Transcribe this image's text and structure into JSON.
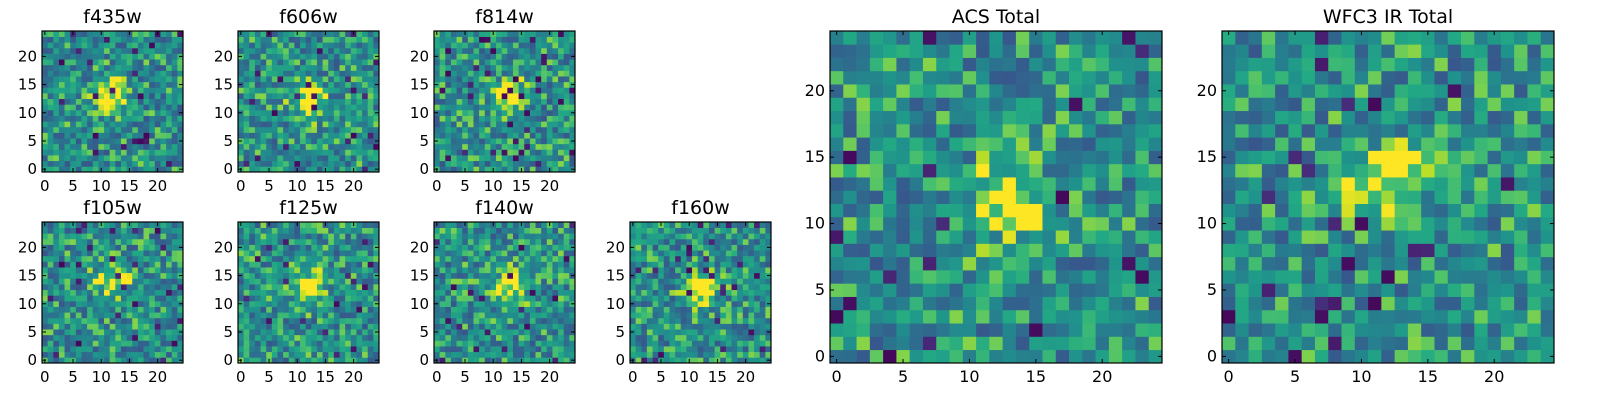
{
  "chart_data": [
    {
      "type": "heatmap",
      "title": "f435w",
      "grid": 25,
      "xticks": [
        0,
        5,
        10,
        15,
        20
      ],
      "yticks": [
        0,
        5,
        10,
        15,
        20
      ],
      "xlim": [
        0,
        25
      ],
      "ylim": [
        0,
        25
      ],
      "peak": [
        12,
        13
      ],
      "colormap": "viridis"
    },
    {
      "type": "heatmap",
      "title": "f606w",
      "grid": 25,
      "xticks": [
        0,
        5,
        10,
        15,
        20
      ],
      "yticks": [
        0,
        5,
        10,
        15,
        20
      ],
      "xlim": [
        0,
        25
      ],
      "ylim": [
        0,
        25
      ],
      "peak": [
        12,
        12
      ],
      "colormap": "viridis"
    },
    {
      "type": "heatmap",
      "title": "f814w",
      "grid": 25,
      "xticks": [
        0,
        5,
        10,
        15,
        20
      ],
      "yticks": [
        0,
        5,
        10,
        15,
        20
      ],
      "xlim": [
        0,
        25
      ],
      "ylim": [
        0,
        25
      ],
      "peak": [
        13,
        13
      ],
      "colormap": "viridis"
    },
    {
      "type": "heatmap",
      "title": "f105w",
      "grid": 25,
      "xticks": [
        0,
        5,
        10,
        15,
        20
      ],
      "yticks": [
        0,
        5,
        10,
        15,
        20
      ],
      "xlim": [
        0,
        25
      ],
      "ylim": [
        0,
        25
      ],
      "peak": [
        12,
        14
      ],
      "colormap": "viridis"
    },
    {
      "type": "heatmap",
      "title": "f125w",
      "grid": 25,
      "xticks": [
        0,
        5,
        10,
        15,
        20
      ],
      "yticks": [
        0,
        5,
        10,
        15,
        20
      ],
      "xlim": [
        0,
        25
      ],
      "ylim": [
        0,
        25
      ],
      "peak": [
        12,
        13
      ],
      "colormap": "viridis"
    },
    {
      "type": "heatmap",
      "title": "f140w",
      "grid": 25,
      "xticks": [
        0,
        5,
        10,
        15,
        20
      ],
      "yticks": [
        0,
        5,
        10,
        15,
        20
      ],
      "xlim": [
        0,
        25
      ],
      "ylim": [
        0,
        25
      ],
      "peak": [
        13,
        13
      ],
      "colormap": "viridis"
    },
    {
      "type": "heatmap",
      "title": "f160w",
      "grid": 25,
      "xticks": [
        0,
        5,
        10,
        15,
        20
      ],
      "yticks": [
        0,
        5,
        10,
        15,
        20
      ],
      "xlim": [
        0,
        25
      ],
      "ylim": [
        0,
        25
      ],
      "peak": [
        12,
        13
      ],
      "colormap": "viridis"
    },
    {
      "type": "heatmap",
      "title": "ACS Total",
      "grid": 25,
      "xticks": [
        0,
        5,
        10,
        15,
        20
      ],
      "yticks": [
        0,
        5,
        10,
        15,
        20
      ],
      "xlim": [
        0,
        25
      ],
      "ylim": [
        0,
        25
      ],
      "peak": [
        13,
        12
      ],
      "colormap": "viridis"
    },
    {
      "type": "heatmap",
      "title": "WFC3 IR Total",
      "grid": 25,
      "xticks": [
        0,
        5,
        10,
        15,
        20
      ],
      "yticks": [
        0,
        5,
        10,
        15,
        20
      ],
      "xlim": [
        0,
        25
      ],
      "ylim": [
        0,
        25
      ],
      "peak": [
        12,
        13
      ],
      "colormap": "viridis"
    }
  ]
}
